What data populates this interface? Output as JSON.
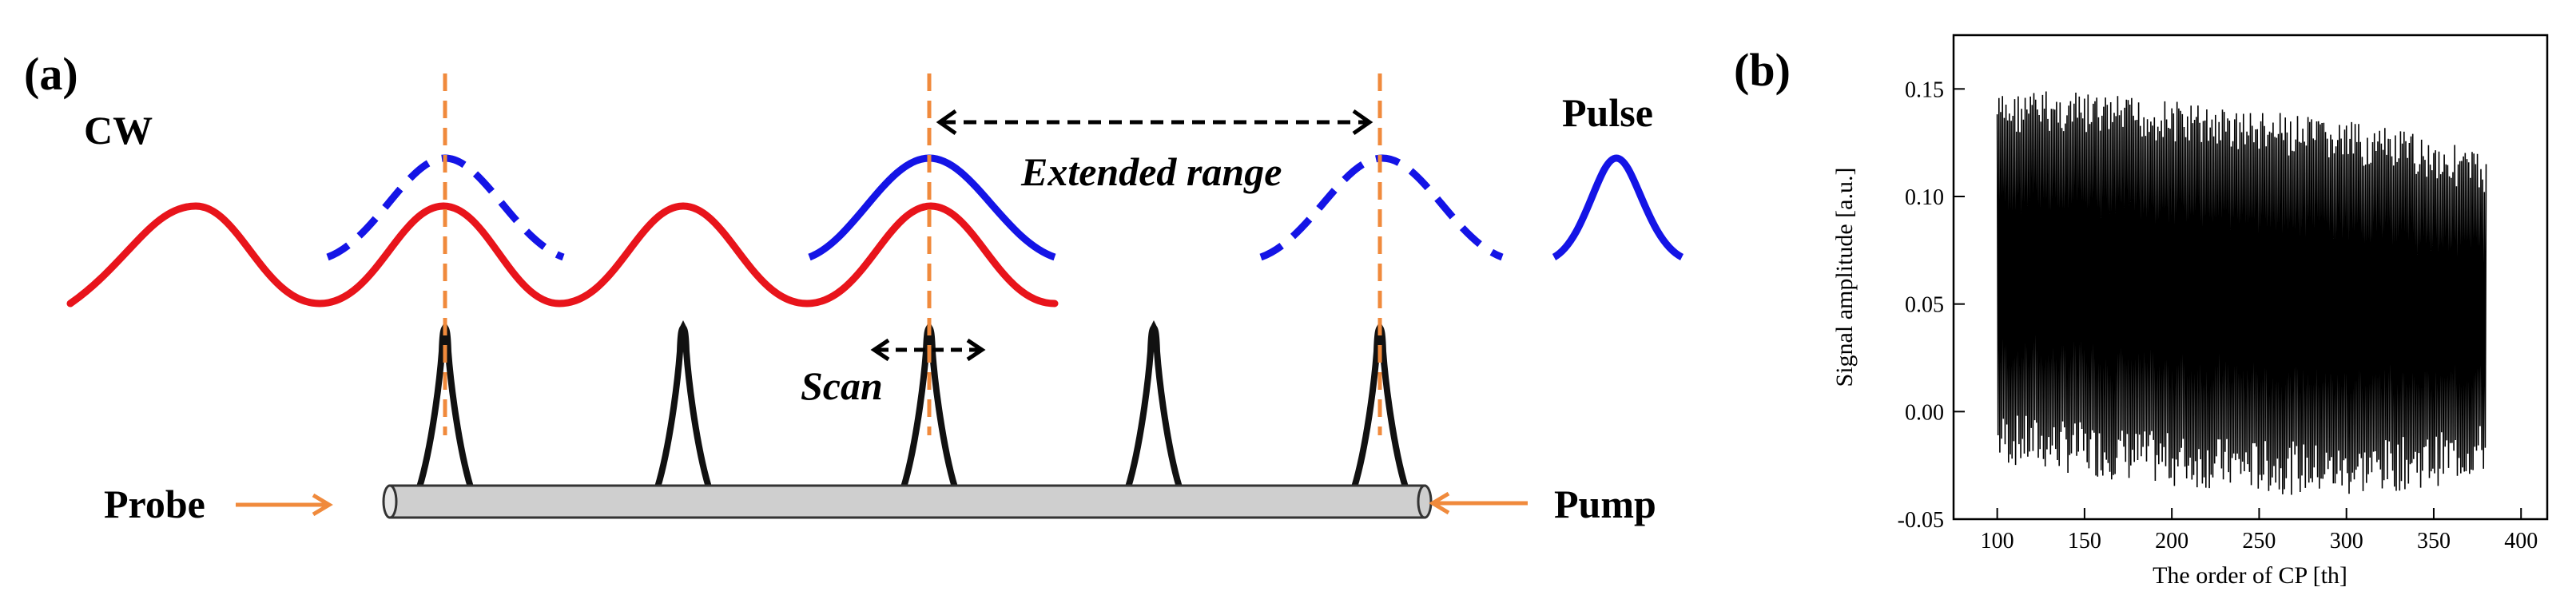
{
  "panel_a": {
    "label": "(a)",
    "cw_label": "CW",
    "pulse_label": "Pulse",
    "extended_range_label": "Extended range",
    "scan_label": "Scan",
    "probe_label": "Probe",
    "pump_label": "Pump",
    "colors": {
      "cw_wave": "#e8141b",
      "pulse_wave": "#1414e6",
      "marker_line": "#f08a3c",
      "arrow_orange": "#f08a3c",
      "fiber_fill": "#cfcfcf",
      "peaks": "#111111"
    }
  },
  "panel_b": {
    "label": "(b)"
  },
  "chart_data": {
    "type": "line",
    "title": "",
    "xlabel": "The order of CP [th]",
    "ylabel": "Signal amplitude [a.u.]",
    "xlim": [
      75,
      415
    ],
    "ylim": [
      -0.05,
      0.175
    ],
    "xticks": [
      "100",
      "150",
      "200",
      "250",
      "300",
      "350",
      "400"
    ],
    "yticks": [
      "-0.05",
      "0.00",
      "0.05",
      "0.10",
      "0.15"
    ],
    "grid": false,
    "legend": "none",
    "series": [
      {
        "color": "#000000",
        "x_range": [
          100,
          380
        ],
        "upper_envelope": [
          [
            100,
            0.148
          ],
          [
            125,
            0.15
          ],
          [
            150,
            0.148
          ],
          [
            200,
            0.145
          ],
          [
            250,
            0.14
          ],
          [
            300,
            0.135
          ],
          [
            350,
            0.128
          ],
          [
            380,
            0.12
          ]
        ],
        "lower_envelope": [
          [
            100,
            -0.025
          ],
          [
            150,
            -0.03
          ],
          [
            200,
            -0.035
          ],
          [
            250,
            -0.038
          ],
          [
            300,
            -0.04
          ],
          [
            350,
            -0.035
          ],
          [
            380,
            -0.03
          ]
        ]
      }
    ]
  }
}
